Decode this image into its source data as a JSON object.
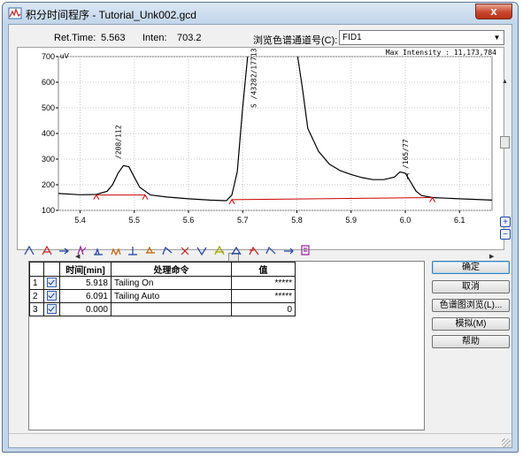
{
  "window": {
    "title": "积分时间程序 - Tutorial_Unk002.gcd",
    "close_glyph": "x",
    "icon": "chart-app-icon"
  },
  "info": {
    "ret_time_label": "Ret.Time:",
    "ret_time_value": "5.563",
    "inten_label": "Inten:",
    "inten_value": "703.2",
    "channel_label": "浏览色谱通道号(C):",
    "channel_value": "FID1"
  },
  "chart_data": {
    "type": "line",
    "x_unit_label": "",
    "y_unit_label": "uV",
    "max_intensity_text": "Max Intensity : 11,173,784",
    "xlim": [
      5.36,
      6.16
    ],
    "ylim": [
      100,
      700
    ],
    "x_ticks": [
      "5.4",
      "5.5",
      "5.6",
      "5.7",
      "5.8",
      "5.9",
      "6.0",
      "6.1"
    ],
    "y_ticks": [
      "100",
      "200",
      "300",
      "400",
      "500",
      "600",
      "700"
    ],
    "grid": true,
    "trace": {
      "x": [
        5.36,
        5.4,
        5.43,
        5.45,
        5.46,
        5.47,
        5.48,
        5.49,
        5.5,
        5.51,
        5.53,
        5.56,
        5.6,
        5.64,
        5.67,
        5.68,
        5.69,
        5.7,
        5.71,
        5.72,
        5.8,
        5.81,
        5.82,
        5.84,
        5.86,
        5.88,
        5.9,
        5.92,
        5.94,
        5.96,
        5.98,
        5.99,
        6.0,
        6.01,
        6.02,
        6.03,
        6.05,
        6.1,
        6.16
      ],
      "y": [
        166,
        161,
        162,
        175,
        200,
        245,
        275,
        270,
        230,
        190,
        160,
        152,
        145,
        140,
        138,
        160,
        250,
        500,
        720,
        720,
        720,
        580,
        420,
        330,
        280,
        255,
        240,
        228,
        220,
        220,
        230,
        250,
        245,
        210,
        175,
        158,
        150,
        145,
        140
      ]
    },
    "baselines": [
      {
        "x": [
          5.43,
          5.52
        ],
        "y": [
          160,
          160
        ]
      },
      {
        "x": [
          5.68,
          6.05
        ],
        "y": [
          142,
          150
        ]
      }
    ],
    "peak_labels": [
      {
        "x": 5.475,
        "y": 300,
        "text": "/208/112"
      },
      {
        "x": 5.725,
        "y": 500,
        "text": "S /43282/17713"
      },
      {
        "x": 6.005,
        "y": 262,
        "text": "/165/77"
      }
    ],
    "marker_text": "T"
  },
  "toolbar": {
    "icons": [
      "peak-start-icon",
      "peak-end-icon",
      "skim-icon",
      "peak-split-icon",
      "baseline-icon",
      "valley-icon",
      "drop-icon",
      "horizontal-baseline-icon",
      "tail-icon",
      "reject-icon",
      "negative-peak-icon",
      "solvent-icon",
      "tangent-icon",
      "front-skim-icon",
      "tailing-icon",
      "forward-icon",
      "report-icon"
    ]
  },
  "table": {
    "headers": [
      "",
      "",
      "时间[min]",
      "处理命令",
      "值"
    ],
    "rows": [
      {
        "num": "1",
        "time": "5.918",
        "command": "Tailing On",
        "value": "*****"
      },
      {
        "num": "2",
        "time": "6.091",
        "command": "Tailing Auto",
        "value": "*****"
      },
      {
        "num": "3",
        "time": "0.000",
        "command": "",
        "value": "0"
      }
    ]
  },
  "buttons": {
    "ok": "确定",
    "cancel": "取消",
    "browse": "色谱图浏览(L)...",
    "simulate": "模拟(M)",
    "help": "帮助"
  },
  "colors": {
    "trace": "#000000",
    "baseline": "#cc0000",
    "grid": "#c8c8c8"
  }
}
